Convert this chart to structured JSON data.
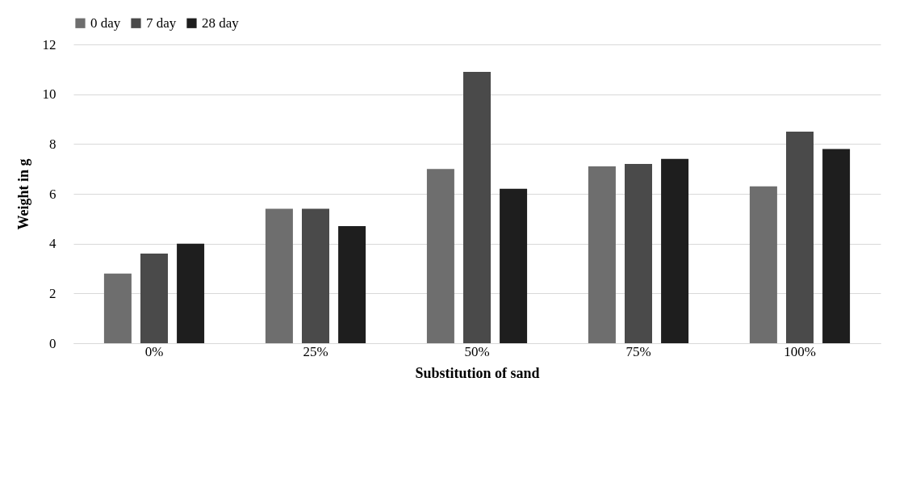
{
  "chart_data": {
    "type": "bar",
    "xlabel": "Substitution of sand",
    "ylabel": "Weight in g",
    "categories": [
      "0%",
      "25%",
      "50%",
      "75%",
      "100%"
    ],
    "series": [
      {
        "name": "0 day",
        "color": "#6e6e6e",
        "values": [
          2.8,
          5.4,
          7.0,
          7.1,
          6.3
        ]
      },
      {
        "name": "7 day",
        "color": "#4a4a4a",
        "values": [
          3.6,
          5.4,
          10.9,
          7.2,
          8.5
        ]
      },
      {
        "name": "28 day",
        "color": "#1e1e1e",
        "values": [
          4.0,
          4.7,
          6.2,
          7.4,
          7.8
        ]
      }
    ],
    "ylim": [
      0,
      12
    ],
    "yticks": [
      0,
      2,
      4,
      6,
      8,
      10,
      12
    ],
    "grid": "y",
    "legend": "top"
  }
}
